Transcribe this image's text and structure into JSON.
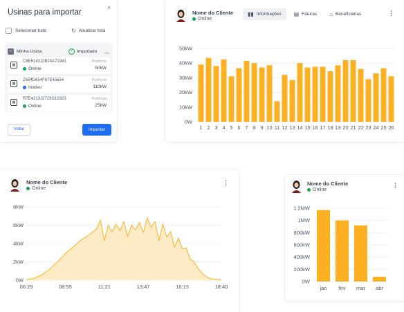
{
  "modal": {
    "title": "Usinas para importar",
    "close_label": "×",
    "select_all_label": "Selecionar tudo",
    "refresh_label": "Atualizar lista",
    "group": {
      "name": "Minha Usina",
      "status": "Importado",
      "units": [
        {
          "code": "C8E6143J2B24A71941",
          "status": "Online",
          "status_color": "#16a34a",
          "power_label": "Potência",
          "power": "50kW"
        },
        {
          "code": "Z654D654F87E45654",
          "status": "Inativo",
          "status_color": "#2563eb",
          "power_label": "Potência",
          "power": "110kW"
        },
        {
          "code": "R7E4213J2723G12323",
          "status": "Online",
          "status_color": "#16a34a",
          "power_label": "Potência",
          "power": "25kW"
        }
      ]
    },
    "back_label": "Voltar",
    "import_label": "Importar"
  },
  "client": {
    "name": "Nome do Cliente",
    "status": "Online",
    "status_color": "#16a34a"
  },
  "tabs": [
    {
      "label": "Informações",
      "icon": "bar-chart-icon",
      "active": true
    },
    {
      "label": "Faturas",
      "icon": "invoice-icon",
      "active": false
    },
    {
      "label": "Beneficiárias",
      "icon": "home-icon",
      "active": false
    }
  ],
  "colors": {
    "accent": "#fdb022",
    "accent_fill": "#fde8bb",
    "primary": "#1d6cf2"
  },
  "chart_data": [
    {
      "type": "bar",
      "categories": [
        "1",
        "2",
        "3",
        "4",
        "5",
        "6",
        "7",
        "8",
        "9",
        "10",
        "11",
        "12",
        "13",
        "14",
        "15",
        "16",
        "17",
        "18",
        "19",
        "20",
        "21",
        "22",
        "23",
        "24",
        "25",
        "26"
      ],
      "values": [
        39,
        43.5,
        38,
        42.5,
        31,
        36.5,
        41.5,
        40,
        37,
        38.5,
        14,
        32,
        28.5,
        40,
        37,
        37.5,
        37.5,
        34.5,
        38.5,
        42,
        42,
        36,
        29,
        33,
        36.5,
        31
      ],
      "yticks": [
        "0W",
        "10kW",
        "20kW",
        "30kW",
        "40kW",
        "50kW"
      ],
      "ylim": [
        0,
        50
      ]
    },
    {
      "type": "area",
      "xticks": [
        "06:29",
        "08:55",
        "11:21",
        "13:47",
        "16:13",
        "18:40"
      ],
      "yticks": [
        "0W",
        "2kW",
        "4kW",
        "6kW",
        "8kW"
      ],
      "ylim": [
        0,
        8
      ],
      "x": [
        0,
        4,
        8,
        12,
        16,
        20,
        24,
        28,
        32,
        36,
        38,
        40,
        42,
        44,
        46,
        48,
        50,
        52,
        54,
        56,
        58,
        60,
        62,
        64,
        66,
        68,
        70,
        72,
        74,
        76,
        78,
        80,
        82,
        84,
        86,
        88,
        90,
        92,
        94,
        96,
        100
      ],
      "values": [
        0.05,
        0.2,
        0.6,
        1.2,
        2.0,
        2.9,
        3.6,
        4.4,
        4.9,
        5.6,
        6.6,
        4.3,
        6.0,
        5.3,
        6.1,
        5.4,
        6.4,
        4.8,
        6.0,
        5.5,
        6.3,
        5.2,
        6.8,
        5.8,
        6.4,
        4.3,
        6.1,
        4.7,
        5.3,
        3.6,
        4.6,
        3.4,
        3.5,
        2.3,
        2.0,
        1.3,
        0.8,
        0.4,
        0.2,
        0.1,
        0.03
      ]
    },
    {
      "type": "bar",
      "categories": [
        "jan",
        "fev",
        "mar",
        "abr"
      ],
      "values": [
        1170,
        1000,
        920,
        80
      ],
      "yticks": [
        "0W",
        "200kW",
        "400kW",
        "600kW",
        "800kW",
        "1MW",
        "1,2MW"
      ],
      "ylim": [
        0,
        1200
      ]
    }
  ]
}
